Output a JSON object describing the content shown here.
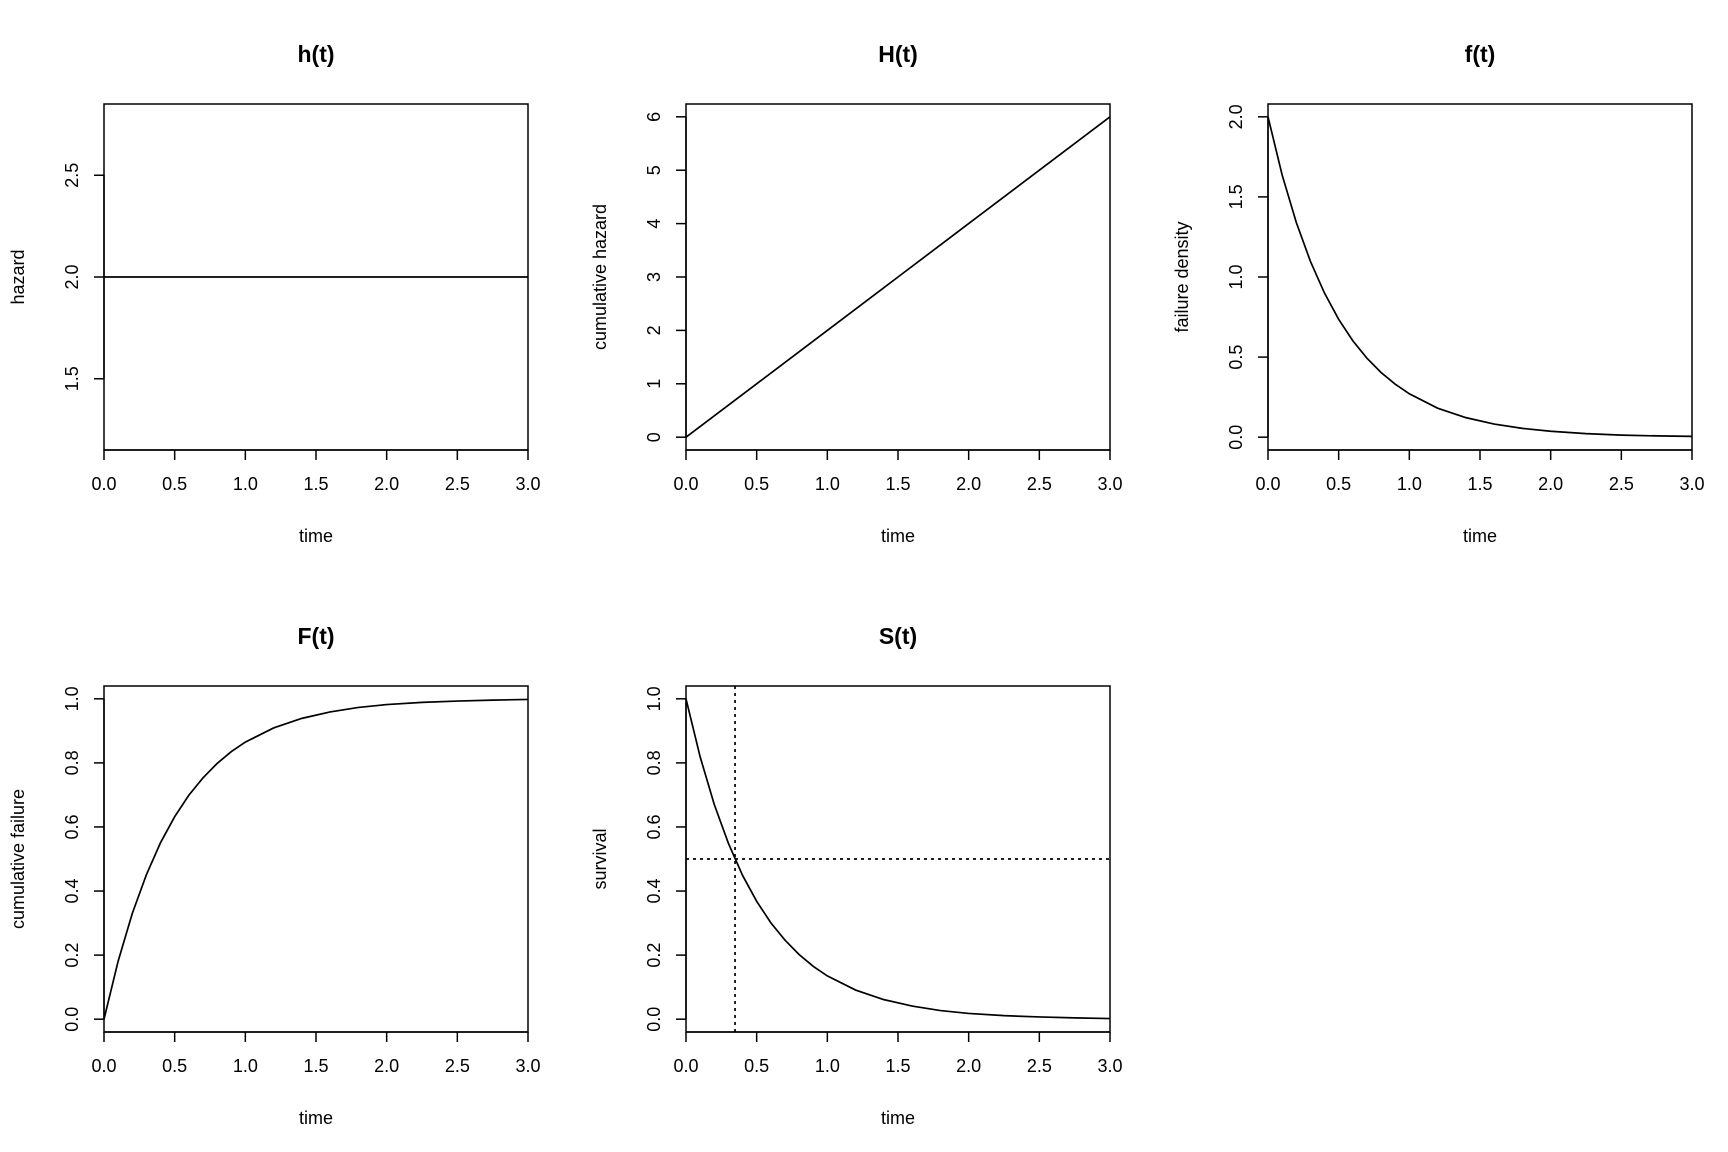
{
  "figure": {
    "chart_data": [
      {
        "type": "line",
        "title": "h(t)",
        "xlabel": "time",
        "ylabel": "hazard",
        "xlim": [
          0,
          3
        ],
        "ylim": [
          1.15,
          2.85
        ],
        "xticks": [
          0.0,
          0.5,
          1.0,
          1.5,
          2.0,
          2.5,
          3.0
        ],
        "xtick_labels": [
          "0.0",
          "0.5",
          "1.0",
          "1.5",
          "2.0",
          "2.5",
          "3.0"
        ],
        "yticks": [
          1.5,
          2.0,
          2.5
        ],
        "ytick_labels": [
          "1.5",
          "2.0",
          "2.5"
        ],
        "grid": false,
        "series": [
          {
            "x": [
              0.0,
              0.5,
              1.0,
              1.5,
              2.0,
              2.5,
              3.0
            ],
            "y": [
              2.0,
              2.0,
              2.0,
              2.0,
              2.0,
              2.0,
              2.0
            ]
          }
        ]
      },
      {
        "type": "line",
        "title": "H(t)",
        "xlabel": "time",
        "ylabel": "cumulative hazard",
        "xlim": [
          0,
          3
        ],
        "ylim": [
          -0.24,
          6.24
        ],
        "xticks": [
          0.0,
          0.5,
          1.0,
          1.5,
          2.0,
          2.5,
          3.0
        ],
        "xtick_labels": [
          "0.0",
          "0.5",
          "1.0",
          "1.5",
          "2.0",
          "2.5",
          "3.0"
        ],
        "yticks": [
          0,
          1,
          2,
          3,
          4,
          5,
          6
        ],
        "ytick_labels": [
          "0",
          "1",
          "2",
          "3",
          "4",
          "5",
          "6"
        ],
        "grid": false,
        "series": [
          {
            "x": [
              0.0,
              0.5,
              1.0,
              1.5,
              2.0,
              2.5,
              3.0
            ],
            "y": [
              0.0,
              1.0,
              2.0,
              3.0,
              4.0,
              5.0,
              6.0
            ]
          }
        ]
      },
      {
        "type": "line",
        "title": "f(t)",
        "xlabel": "time",
        "ylabel": "failure density",
        "xlim": [
          0,
          3
        ],
        "ylim": [
          -0.08,
          2.08
        ],
        "xticks": [
          0.0,
          0.5,
          1.0,
          1.5,
          2.0,
          2.5,
          3.0
        ],
        "xtick_labels": [
          "0.0",
          "0.5",
          "1.0",
          "1.5",
          "2.0",
          "2.5",
          "3.0"
        ],
        "yticks": [
          0.0,
          0.5,
          1.0,
          1.5,
          2.0
        ],
        "ytick_labels": [
          "0.0",
          "0.5",
          "1.0",
          "1.5",
          "2.0"
        ],
        "grid": false,
        "series": [
          {
            "x": [
              0.0,
              0.1,
              0.2,
              0.3,
              0.4,
              0.5,
              0.6,
              0.7,
              0.8,
              0.9,
              1.0,
              1.2,
              1.4,
              1.6,
              1.8,
              2.0,
              2.25,
              2.5,
              2.75,
              3.0
            ],
            "y": [
              2.0,
              1.637,
              1.341,
              1.098,
              0.899,
              0.736,
              0.602,
              0.493,
              0.404,
              0.331,
              0.271,
              0.181,
              0.122,
              0.082,
              0.055,
              0.037,
              0.022,
              0.013,
              0.008,
              0.005
            ]
          }
        ]
      },
      {
        "type": "line",
        "title": "F(t)",
        "xlabel": "time",
        "ylabel": "cumulative failure",
        "xlim": [
          0,
          3
        ],
        "ylim": [
          -0.04,
          1.04
        ],
        "xticks": [
          0.0,
          0.5,
          1.0,
          1.5,
          2.0,
          2.5,
          3.0
        ],
        "xtick_labels": [
          "0.0",
          "0.5",
          "1.0",
          "1.5",
          "2.0",
          "2.5",
          "3.0"
        ],
        "yticks": [
          0.0,
          0.2,
          0.4,
          0.6,
          0.8,
          1.0
        ],
        "ytick_labels": [
          "0.0",
          "0.2",
          "0.4",
          "0.6",
          "0.8",
          "1.0"
        ],
        "grid": false,
        "series": [
          {
            "x": [
              0.0,
              0.1,
              0.2,
              0.3,
              0.4,
              0.5,
              0.6,
              0.7,
              0.8,
              0.9,
              1.0,
              1.2,
              1.4,
              1.6,
              1.8,
              2.0,
              2.25,
              2.5,
              2.75,
              3.0
            ],
            "y": [
              0.0,
              0.181,
              0.33,
              0.451,
              0.551,
              0.632,
              0.699,
              0.753,
              0.798,
              0.835,
              0.865,
              0.909,
              0.939,
              0.959,
              0.973,
              0.982,
              0.989,
              0.993,
              0.996,
              0.998
            ]
          }
        ]
      },
      {
        "type": "line",
        "title": "S(t)",
        "xlabel": "time",
        "ylabel": "survival",
        "xlim": [
          0,
          3
        ],
        "ylim": [
          -0.04,
          1.04
        ],
        "xticks": [
          0.0,
          0.5,
          1.0,
          1.5,
          2.0,
          2.5,
          3.0
        ],
        "xtick_labels": [
          "0.0",
          "0.5",
          "1.0",
          "1.5",
          "2.0",
          "2.5",
          "3.0"
        ],
        "yticks": [
          0.0,
          0.2,
          0.4,
          0.6,
          0.8,
          1.0
        ],
        "ytick_labels": [
          "0.0",
          "0.2",
          "0.4",
          "0.6",
          "0.8",
          "1.0"
        ],
        "grid": false,
        "series": [
          {
            "x": [
              0.0,
              0.1,
              0.2,
              0.3,
              0.4,
              0.5,
              0.6,
              0.7,
              0.8,
              0.9,
              1.0,
              1.2,
              1.4,
              1.6,
              1.8,
              2.0,
              2.25,
              2.5,
              2.75,
              3.0
            ],
            "y": [
              1.0,
              0.819,
              0.67,
              0.549,
              0.449,
              0.368,
              0.301,
              0.247,
              0.202,
              0.165,
              0.135,
              0.091,
              0.061,
              0.041,
              0.027,
              0.018,
              0.011,
              0.007,
              0.004,
              0.002
            ]
          }
        ],
        "reference_lines": [
          {
            "orientation": "horizontal",
            "value": 0.5,
            "style": "dotted"
          },
          {
            "orientation": "vertical",
            "value": 0.347,
            "style": "dotted"
          }
        ]
      }
    ]
  }
}
